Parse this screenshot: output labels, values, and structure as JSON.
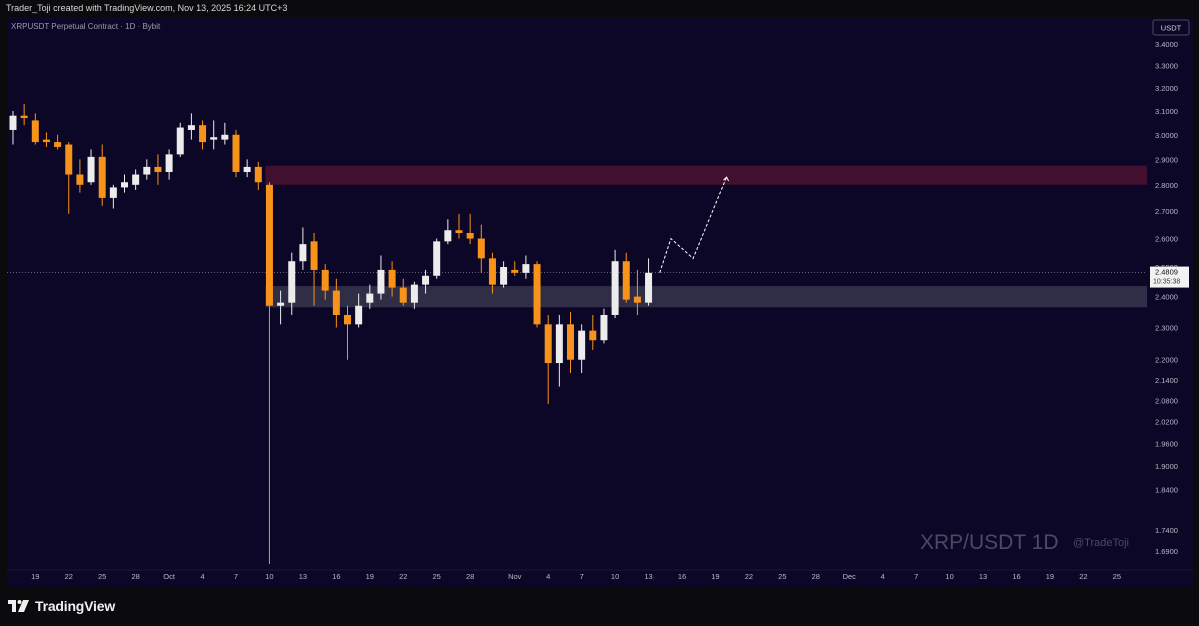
{
  "header": {
    "credit": "Trader_Toji created with TradingView.com, Nov 13, 2025 16:24 UTC+3"
  },
  "footer": {
    "brand": "TradingView"
  },
  "chart_data": {
    "type": "candlestick",
    "symbol_label": "XRPUSDT Perpetual Contract · 1D · Bybit",
    "currency_button": "USDT",
    "watermark": "XRP/USDT 1D",
    "watermark_handle": "@TradeToji",
    "scale": "log",
    "ylim": [
      1.66,
      3.48
    ],
    "y_ticks": [
      "3.4000",
      "3.3000",
      "3.2000",
      "3.1000",
      "3.0000",
      "2.9000",
      "2.8000",
      "2.7000",
      "2.6000",
      "2.5000",
      "2.4000",
      "2.3000",
      "2.2000",
      "2.1400",
      "2.0800",
      "2.0200",
      "1.9600",
      "1.9000",
      "1.8400",
      "1.7400",
      "1.6900"
    ],
    "x_ticks": [
      "19",
      "22",
      "25",
      "28",
      "Oct",
      "4",
      "7",
      "10",
      "13",
      "16",
      "19",
      "22",
      "25",
      "28",
      "Nov",
      "4",
      "7",
      "10",
      "13",
      "16",
      "19",
      "22",
      "25",
      "28",
      "Dec",
      "4",
      "7",
      "10",
      "13",
      "16",
      "19",
      "22",
      "25"
    ],
    "last_price": "2.4809",
    "countdown": "10:35:38",
    "colors": {
      "background": "#0c0726",
      "up": "#ececec",
      "down": "#f7931a",
      "resistance_zone": "#4a1230",
      "support_zone": "#3a3850",
      "projection": "#ffffff"
    },
    "zones": [
      {
        "name": "resistance",
        "from": 2.8,
        "to": 2.875
      },
      {
        "name": "support",
        "from": 2.365,
        "to": 2.435
      }
    ],
    "candles": [
      {
        "d": "Sep 17",
        "o": 3.02,
        "h": 3.1,
        "l": 2.96,
        "c": 3.08
      },
      {
        "d": "Sep 18",
        "o": 3.08,
        "h": 3.13,
        "l": 3.04,
        "c": 3.07
      },
      {
        "d": "Sep 19",
        "o": 3.06,
        "h": 3.09,
        "l": 2.96,
        "c": 2.97
      },
      {
        "d": "Sep 20",
        "o": 2.98,
        "h": 3.01,
        "l": 2.95,
        "c": 2.97
      },
      {
        "d": "Sep 21",
        "o": 2.97,
        "h": 3.0,
        "l": 2.94,
        "c": 2.95
      },
      {
        "d": "Sep 22",
        "o": 2.96,
        "h": 2.97,
        "l": 2.69,
        "c": 2.84
      },
      {
        "d": "Sep 23",
        "o": 2.84,
        "h": 2.9,
        "l": 2.77,
        "c": 2.8
      },
      {
        "d": "Sep 24",
        "o": 2.81,
        "h": 2.94,
        "l": 2.8,
        "c": 2.91
      },
      {
        "d": "Sep 25",
        "o": 2.91,
        "h": 2.96,
        "l": 2.72,
        "c": 2.75
      },
      {
        "d": "Sep 26",
        "o": 2.75,
        "h": 2.8,
        "l": 2.71,
        "c": 2.79
      },
      {
        "d": "Sep 27",
        "o": 2.79,
        "h": 2.84,
        "l": 2.77,
        "c": 2.81
      },
      {
        "d": "Sep 28",
        "o": 2.8,
        "h": 2.86,
        "l": 2.78,
        "c": 2.84
      },
      {
        "d": "Sep 29",
        "o": 2.84,
        "h": 2.9,
        "l": 2.82,
        "c": 2.87
      },
      {
        "d": "Sep 30",
        "o": 2.87,
        "h": 2.92,
        "l": 2.8,
        "c": 2.85
      },
      {
        "d": "Oct 1",
        "o": 2.85,
        "h": 2.94,
        "l": 2.82,
        "c": 2.92
      },
      {
        "d": "Oct 2",
        "o": 2.92,
        "h": 3.05,
        "l": 2.91,
        "c": 3.03
      },
      {
        "d": "Oct 3",
        "o": 3.02,
        "h": 3.09,
        "l": 2.98,
        "c": 3.04
      },
      {
        "d": "Oct 4",
        "o": 3.04,
        "h": 3.06,
        "l": 2.94,
        "c": 2.97
      },
      {
        "d": "Oct 5",
        "o": 2.98,
        "h": 3.06,
        "l": 2.94,
        "c": 2.99
      },
      {
        "d": "Oct 6",
        "o": 2.98,
        "h": 3.05,
        "l": 2.96,
        "c": 3.0
      },
      {
        "d": "Oct 7",
        "o": 3.0,
        "h": 3.02,
        "l": 2.83,
        "c": 2.85
      },
      {
        "d": "Oct 8",
        "o": 2.85,
        "h": 2.9,
        "l": 2.83,
        "c": 2.87
      },
      {
        "d": "Oct 9",
        "o": 2.87,
        "h": 2.89,
        "l": 2.78,
        "c": 2.81
      },
      {
        "d": "Oct 10",
        "o": 2.8,
        "h": 2.81,
        "l": 1.66,
        "c": 2.37
      },
      {
        "d": "Oct 11",
        "o": 2.37,
        "h": 2.42,
        "l": 2.31,
        "c": 2.38
      },
      {
        "d": "Oct 12",
        "o": 2.38,
        "h": 2.55,
        "l": 2.34,
        "c": 2.52
      },
      {
        "d": "Oct 13",
        "o": 2.52,
        "h": 2.64,
        "l": 2.49,
        "c": 2.58
      },
      {
        "d": "Oct 14",
        "o": 2.59,
        "h": 2.62,
        "l": 2.37,
        "c": 2.49
      },
      {
        "d": "Oct 15",
        "o": 2.49,
        "h": 2.51,
        "l": 2.39,
        "c": 2.42
      },
      {
        "d": "Oct 16",
        "o": 2.42,
        "h": 2.46,
        "l": 2.3,
        "c": 2.34
      },
      {
        "d": "Oct 17",
        "o": 2.34,
        "h": 2.37,
        "l": 2.2,
        "c": 2.31
      },
      {
        "d": "Oct 18",
        "o": 2.31,
        "h": 2.41,
        "l": 2.3,
        "c": 2.37
      },
      {
        "d": "Oct 19",
        "o": 2.38,
        "h": 2.44,
        "l": 2.36,
        "c": 2.41
      },
      {
        "d": "Oct 20",
        "o": 2.41,
        "h": 2.54,
        "l": 2.39,
        "c": 2.49
      },
      {
        "d": "Oct 21",
        "o": 2.49,
        "h": 2.52,
        "l": 2.4,
        "c": 2.43
      },
      {
        "d": "Oct 22",
        "o": 2.43,
        "h": 2.46,
        "l": 2.37,
        "c": 2.38
      },
      {
        "d": "Oct 23",
        "o": 2.38,
        "h": 2.45,
        "l": 2.36,
        "c": 2.44
      },
      {
        "d": "Oct 24",
        "o": 2.44,
        "h": 2.49,
        "l": 2.41,
        "c": 2.47
      },
      {
        "d": "Oct 25",
        "o": 2.47,
        "h": 2.6,
        "l": 2.46,
        "c": 2.59
      },
      {
        "d": "Oct 26",
        "o": 2.59,
        "h": 2.67,
        "l": 2.58,
        "c": 2.63
      },
      {
        "d": "Oct 27",
        "o": 2.63,
        "h": 2.69,
        "l": 2.6,
        "c": 2.62
      },
      {
        "d": "Oct 28",
        "o": 2.62,
        "h": 2.69,
        "l": 2.58,
        "c": 2.6
      },
      {
        "d": "Oct 29",
        "o": 2.6,
        "h": 2.65,
        "l": 2.48,
        "c": 2.53
      },
      {
        "d": "Oct 30",
        "o": 2.53,
        "h": 2.55,
        "l": 2.41,
        "c": 2.44
      },
      {
        "d": "Oct 31",
        "o": 2.44,
        "h": 2.52,
        "l": 2.43,
        "c": 2.5
      },
      {
        "d": "Nov 1",
        "o": 2.49,
        "h": 2.52,
        "l": 2.47,
        "c": 2.48
      },
      {
        "d": "Nov 2",
        "o": 2.48,
        "h": 2.54,
        "l": 2.46,
        "c": 2.51
      },
      {
        "d": "Nov 3",
        "o": 2.51,
        "h": 2.52,
        "l": 2.3,
        "c": 2.31
      },
      {
        "d": "Nov 4",
        "o": 2.31,
        "h": 2.34,
        "l": 2.07,
        "c": 2.19
      },
      {
        "d": "Nov 5",
        "o": 2.19,
        "h": 2.34,
        "l": 2.12,
        "c": 2.31
      },
      {
        "d": "Nov 6",
        "o": 2.31,
        "h": 2.35,
        "l": 2.16,
        "c": 2.2
      },
      {
        "d": "Nov 7",
        "o": 2.2,
        "h": 2.31,
        "l": 2.16,
        "c": 2.29
      },
      {
        "d": "Nov 8",
        "o": 2.29,
        "h": 2.34,
        "l": 2.23,
        "c": 2.26
      },
      {
        "d": "Nov 9",
        "o": 2.26,
        "h": 2.36,
        "l": 2.25,
        "c": 2.34
      },
      {
        "d": "Nov 10",
        "o": 2.34,
        "h": 2.56,
        "l": 2.33,
        "c": 2.52
      },
      {
        "d": "Nov 11",
        "o": 2.52,
        "h": 2.55,
        "l": 2.38,
        "c": 2.39
      },
      {
        "d": "Nov 12",
        "o": 2.4,
        "h": 2.49,
        "l": 2.34,
        "c": 2.38
      },
      {
        "d": "Nov 13",
        "o": 2.38,
        "h": 2.53,
        "l": 2.37,
        "c": 2.48
      }
    ],
    "projection_path": [
      {
        "d": "Nov 14",
        "v": 2.48
      },
      {
        "d": "Nov 15",
        "v": 2.6
      },
      {
        "d": "Nov 17",
        "v": 2.53
      },
      {
        "d": "Nov 20",
        "v": 2.83
      }
    ]
  }
}
